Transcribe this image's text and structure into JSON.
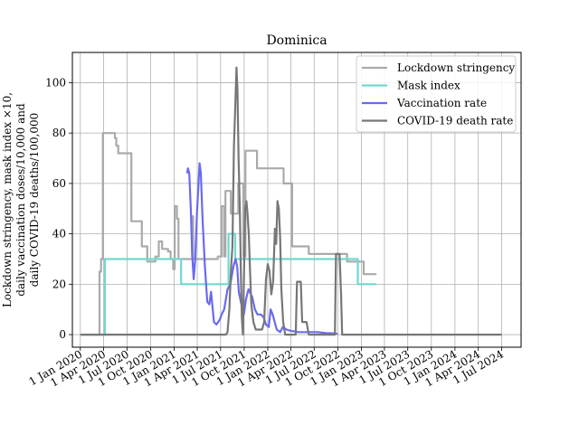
{
  "chart_data": {
    "type": "line",
    "title": "Dominica",
    "ylabel_lines": [
      "Lockdown stringency, mask index ×10,",
      "daily vaccination doses/10,000 and",
      "daily COVID-19 deaths/100,000"
    ],
    "xlabel": "",
    "x_ticks": [
      "1 Jan 2020",
      "1 Apr 2020",
      "1 Jul 2020",
      "1 Oct 2020",
      "1 Jan 2021",
      "1 Apr 2021",
      "1 Jul 2021",
      "1 Oct 2021",
      "1 Jan 2022",
      "1 Apr 2022",
      "1 Jul 2022",
      "1 Oct 2022",
      "1 Jan 2023",
      "1 Apr 2023",
      "1 Jul 2023",
      "1 Oct 2023",
      "1 Jan 2024",
      "1 Apr 2024",
      "1 Jul 2024"
    ],
    "y_ticks": [
      0,
      20,
      40,
      60,
      80,
      100
    ],
    "xlim": [
      "2019-12-01",
      "2024-09-15"
    ],
    "ylim": [
      -5,
      112
    ],
    "grid": true,
    "legend_position": "top-right",
    "series": [
      {
        "name": "Lockdown stringency",
        "color": "#aaaaaa",
        "step": true,
        "points": [
          [
            "2020-01-01",
            0
          ],
          [
            "2020-03-10",
            0
          ],
          [
            "2020-03-16",
            25
          ],
          [
            "2020-03-22",
            30
          ],
          [
            "2020-03-29",
            80
          ],
          [
            "2020-05-15",
            78
          ],
          [
            "2020-05-20",
            75
          ],
          [
            "2020-05-28",
            72
          ],
          [
            "2020-07-18",
            45
          ],
          [
            "2020-08-28",
            35
          ],
          [
            "2020-09-18",
            29
          ],
          [
            "2020-10-20",
            31
          ],
          [
            "2020-11-02",
            37
          ],
          [
            "2020-11-15",
            34
          ],
          [
            "2020-12-08",
            33
          ],
          [
            "2020-12-18",
            30
          ],
          [
            "2020-12-28",
            26
          ],
          [
            "2021-01-03",
            51
          ],
          [
            "2021-01-12",
            46
          ],
          [
            "2021-01-18",
            30
          ],
          [
            "2021-03-12",
            47
          ],
          [
            "2021-03-16",
            30
          ],
          [
            "2021-06-20",
            31
          ],
          [
            "2021-07-05",
            51
          ],
          [
            "2021-07-15",
            31
          ],
          [
            "2021-07-20",
            57
          ],
          [
            "2021-08-03",
            57
          ],
          [
            "2021-08-10",
            48
          ],
          [
            "2021-08-27",
            48
          ],
          [
            "2021-09-08",
            60
          ],
          [
            "2021-09-28",
            31
          ],
          [
            "2021-10-06",
            73
          ],
          [
            "2021-11-08",
            73
          ],
          [
            "2021-11-20",
            66
          ],
          [
            "2022-03-04",
            60
          ],
          [
            "2022-04-06",
            35
          ],
          [
            "2022-06-10",
            32
          ],
          [
            "2022-11-06",
            29
          ],
          [
            "2022-12-10",
            29
          ],
          [
            "2023-01-10",
            24
          ],
          [
            "2023-03-01",
            24
          ]
        ]
      },
      {
        "name": "Mask index",
        "color": "#6fd9cf",
        "step": true,
        "points": [
          [
            "2020-01-01",
            0
          ],
          [
            "2020-04-01",
            0
          ],
          [
            "2020-04-06",
            30
          ],
          [
            "2021-01-28",
            20
          ],
          [
            "2021-07-26",
            20
          ],
          [
            "2021-08-01",
            40
          ],
          [
            "2021-08-27",
            30
          ],
          [
            "2022-11-15",
            30
          ],
          [
            "2022-12-18",
            20
          ],
          [
            "2023-03-01",
            20
          ]
        ]
      },
      {
        "name": "Vaccination rate",
        "color": "#6a6af0",
        "step": false,
        "points": [
          [
            "2021-02-20",
            64
          ],
          [
            "2021-02-24",
            66
          ],
          [
            "2021-03-01",
            64
          ],
          [
            "2021-03-07",
            50
          ],
          [
            "2021-03-12",
            32
          ],
          [
            "2021-03-18",
            22
          ],
          [
            "2021-03-24",
            30
          ],
          [
            "2021-03-31",
            48
          ],
          [
            "2021-04-10",
            68
          ],
          [
            "2021-04-15",
            64
          ],
          [
            "2021-04-22",
            45
          ],
          [
            "2021-05-01",
            27
          ],
          [
            "2021-05-10",
            13
          ],
          [
            "2021-05-18",
            12
          ],
          [
            "2021-05-25",
            17
          ],
          [
            "2021-06-05",
            5
          ],
          [
            "2021-06-15",
            4
          ],
          [
            "2021-06-28",
            6
          ],
          [
            "2021-07-05",
            8
          ],
          [
            "2021-07-15",
            10
          ],
          [
            "2021-07-28",
            18
          ],
          [
            "2021-08-08",
            20
          ],
          [
            "2021-08-20",
            27
          ],
          [
            "2021-08-28",
            30
          ],
          [
            "2021-09-04",
            27
          ],
          [
            "2021-09-10",
            17
          ],
          [
            "2021-09-20",
            12
          ],
          [
            "2021-09-30",
            8
          ],
          [
            "2021-10-08",
            14
          ],
          [
            "2021-10-18",
            18
          ],
          [
            "2021-11-01",
            15
          ],
          [
            "2021-11-12",
            10
          ],
          [
            "2021-11-22",
            8
          ],
          [
            "2021-12-05",
            8
          ],
          [
            "2021-12-15",
            7
          ],
          [
            "2021-12-25",
            4
          ],
          [
            "2022-01-05",
            3
          ],
          [
            "2022-01-12",
            10
          ],
          [
            "2022-01-20",
            8
          ],
          [
            "2022-02-05",
            2
          ],
          [
            "2022-02-18",
            1
          ],
          [
            "2022-03-01",
            3
          ],
          [
            "2022-03-15",
            2
          ],
          [
            "2022-04-01",
            1.5
          ],
          [
            "2022-05-01",
            1
          ],
          [
            "2022-06-01",
            1
          ],
          [
            "2022-07-15",
            1
          ],
          [
            "2022-08-15",
            0.6
          ],
          [
            "2022-09-15",
            0.5
          ],
          [
            "2022-10-01",
            0.3
          ]
        ]
      },
      {
        "name": "COVID-19 death rate",
        "color": "#777777",
        "step": false,
        "points": [
          [
            "2020-01-01",
            0
          ],
          [
            "2021-07-22",
            0
          ],
          [
            "2021-07-28",
            1
          ],
          [
            "2021-08-04",
            10
          ],
          [
            "2021-08-10",
            25
          ],
          [
            "2021-08-16",
            35
          ],
          [
            "2021-08-22",
            75
          ],
          [
            "2021-08-27",
            90
          ],
          [
            "2021-09-01",
            106
          ],
          [
            "2021-09-05",
            97
          ],
          [
            "2021-09-09",
            70
          ],
          [
            "2021-09-14",
            50
          ],
          [
            "2021-09-18",
            25
          ],
          [
            "2021-09-22",
            7
          ],
          [
            "2021-09-26",
            0
          ],
          [
            "2021-10-01",
            28
          ],
          [
            "2021-10-05",
            50
          ],
          [
            "2021-10-10",
            53
          ],
          [
            "2021-10-14",
            48
          ],
          [
            "2021-10-19",
            40
          ],
          [
            "2021-10-24",
            25
          ],
          [
            "2021-10-29",
            12
          ],
          [
            "2021-11-06",
            5
          ],
          [
            "2021-11-15",
            2
          ],
          [
            "2021-11-25",
            2
          ],
          [
            "2021-12-10",
            2
          ],
          [
            "2021-12-18",
            5
          ],
          [
            "2021-12-25",
            22
          ],
          [
            "2022-01-01",
            28
          ],
          [
            "2022-01-08",
            25
          ],
          [
            "2022-01-15",
            16
          ],
          [
            "2022-01-22",
            21
          ],
          [
            "2022-01-29",
            42
          ],
          [
            "2022-02-03",
            36
          ],
          [
            "2022-02-08",
            53
          ],
          [
            "2022-02-13",
            50
          ],
          [
            "2022-02-18",
            39
          ],
          [
            "2022-02-23",
            18
          ],
          [
            "2022-03-02",
            5
          ],
          [
            "2022-03-10",
            0
          ],
          [
            "2022-04-20",
            0
          ],
          [
            "2022-04-25",
            21
          ],
          [
            "2022-05-10",
            21
          ],
          [
            "2022-05-15",
            5
          ],
          [
            "2022-05-20",
            5
          ],
          [
            "2022-06-01",
            5
          ],
          [
            "2022-06-10",
            0
          ],
          [
            "2022-09-20",
            0
          ],
          [
            "2022-09-24",
            32
          ],
          [
            "2022-10-08",
            32
          ],
          [
            "2022-10-14",
            16
          ],
          [
            "2022-10-18",
            0
          ],
          [
            "2024-07-01",
            0
          ]
        ]
      }
    ]
  }
}
